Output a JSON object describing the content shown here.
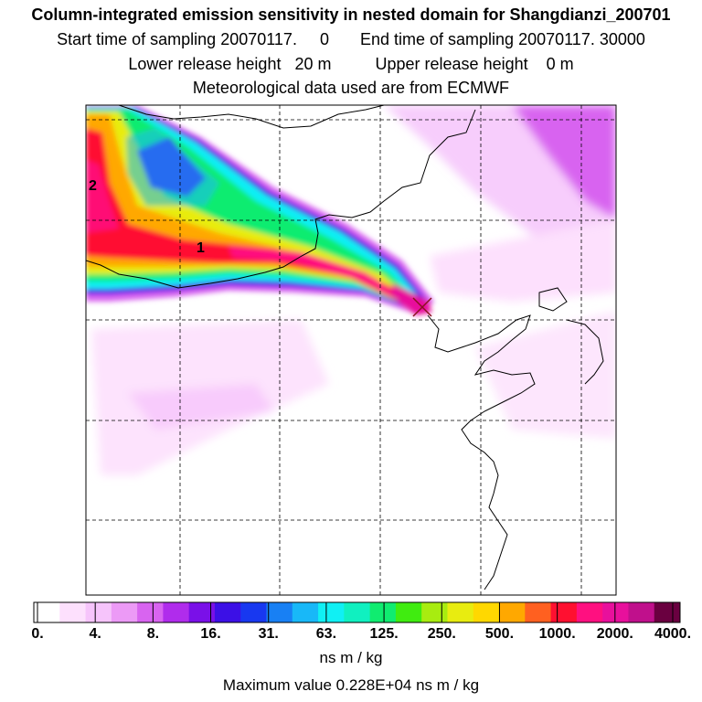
{
  "header": {
    "title": "Column-integrated emission sensitivity in nested domain for Shangdianzi_200701",
    "start_label": "Start time of sampling",
    "start_value": "20070117.     0",
    "end_label": "End time of sampling",
    "end_value": "20070117. 30000",
    "lower_label": "Lower release height",
    "lower_value": "20 m",
    "upper_label": "Upper release height",
    "upper_value": "0 m",
    "met_line": "Meteorological data used are from ECMWF"
  },
  "colors": {
    "scale": [
      "#ffffff",
      "#fde0fd",
      "#f6c4fb",
      "#ec9af6",
      "#d864f0",
      "#b02cec",
      "#7a10e8",
      "#3c10e6",
      "#1838f0",
      "#1880f4",
      "#18b8f8",
      "#10f0f4",
      "#10f0c0",
      "#10ec70",
      "#40ec10",
      "#a8ec10",
      "#e8ec10",
      "#ffd800",
      "#ffa800",
      "#ff6020",
      "#ff1030",
      "#ff1080",
      "#e8109c",
      "#c0108c",
      "#6a0040"
    ],
    "grid": "#000000",
    "coast": "#000000"
  },
  "chart_data": {
    "type": "heatmap",
    "title": "Column-integrated emission sensitivity in nested domain for Shangdianzi_200701",
    "colorbar": {
      "tick_labels": [
        "0.",
        "4.",
        "8.",
        "16.",
        "31.",
        "63.",
        "125.",
        "250.",
        "500.",
        "1000.",
        "2000.",
        "4000."
      ],
      "units": "ns m / kg",
      "scale": "log2"
    },
    "annotations": [
      {
        "text": "1",
        "note": "cluster centroid label"
      },
      {
        "text": "2",
        "note": "cluster centroid label"
      }
    ],
    "release_marker": "X",
    "max_value_text": "Maximum value  0.228E+04 ns m / kg",
    "max_value": 2280,
    "plume": "westerly plume from the west edge of the domain converging on the receptor"
  }
}
